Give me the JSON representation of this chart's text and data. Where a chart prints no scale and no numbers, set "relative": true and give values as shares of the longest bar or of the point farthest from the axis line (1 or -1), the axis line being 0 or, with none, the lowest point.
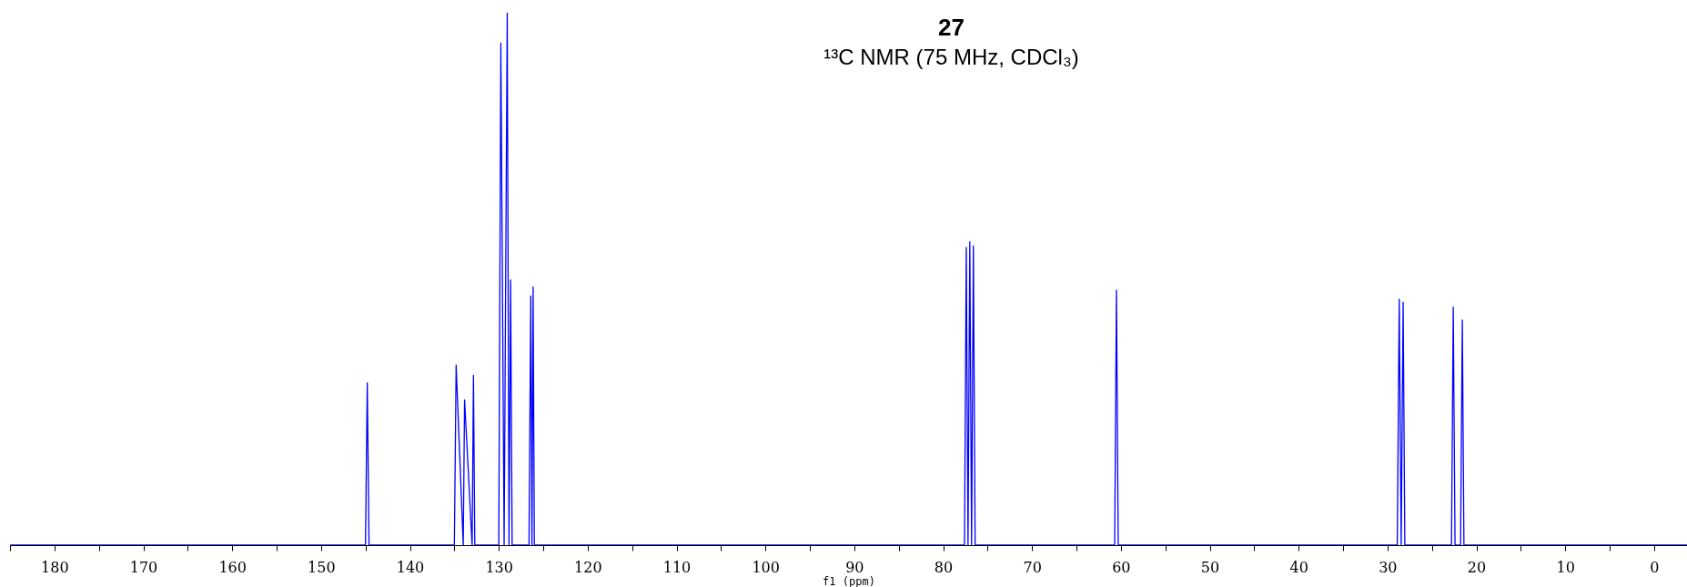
{
  "chart_data": {
    "type": "line",
    "title": "27",
    "subtitle": "¹³C NMR (75 MHz, CDCl₃)",
    "xlabel": "f1 (ppm)",
    "relative": true,
    "xlim": [
      185,
      -3.7
    ],
    "xticks": [
      {
        "value": 185,
        "label": null
      },
      180,
      {
        "value": 175,
        "label": null
      },
      170,
      {
        "value": 165,
        "label": null
      },
      160,
      {
        "value": 155,
        "label": null
      },
      150,
      {
        "value": 145,
        "label": null
      },
      140,
      {
        "value": 135,
        "label": null
      },
      130,
      {
        "value": 125,
        "label": null
      },
      120,
      {
        "value": 115,
        "label": null
      },
      110,
      {
        "value": 105,
        "label": null
      },
      100,
      {
        "value": 95,
        "label": null
      },
      90,
      {
        "value": 85,
        "label": null
      },
      80,
      {
        "value": 75,
        "label": null
      },
      70,
      {
        "value": 65,
        "label": null
      },
      60,
      {
        "value": 55,
        "label": null
      },
      50,
      {
        "value": 45,
        "label": null
      },
      40,
      {
        "value": 35,
        "label": null
      },
      30,
      {
        "value": 25,
        "label": null
      },
      20,
      {
        "value": 15,
        "label": null
      },
      10,
      {
        "value": 5,
        "label": null
      },
      0
    ],
    "grid": false,
    "series": [
      {
        "color": "#0000ff",
        "x": [
          185,
          145.0,
          144.8,
          144.6,
          135.0,
          134.8,
          134.0,
          133.85,
          133.0,
          132.85,
          132.7,
          130.0,
          129.77,
          129.4,
          129.05,
          128.85,
          128.67,
          128.5,
          126.6,
          126.4,
          126.27,
          126.14,
          126.0,
          77.6,
          77.4,
          77.2,
          77.0,
          76.8,
          76.6,
          76.4,
          60.7,
          60.5,
          60.3,
          28.9,
          28.68,
          28.46,
          28.24,
          28.05,
          22.8,
          22.6,
          22.4,
          21.78,
          21.58,
          21.4,
          -3.7
        ],
        "values": [
          0,
          0,
          0.305,
          0,
          0,
          0.338,
          0,
          0.273,
          0,
          0.319,
          0,
          0,
          0.943,
          0,
          1.0,
          0,
          0.498,
          0,
          0,
          0.468,
          0,
          0.485,
          0,
          0,
          0.559,
          0,
          0.57,
          0,
          0.562,
          0,
          0,
          0.479,
          0,
          0,
          0.462,
          0,
          0.456,
          0,
          0,
          0.447,
          0,
          0,
          0.423,
          0,
          0
        ]
      }
    ]
  }
}
